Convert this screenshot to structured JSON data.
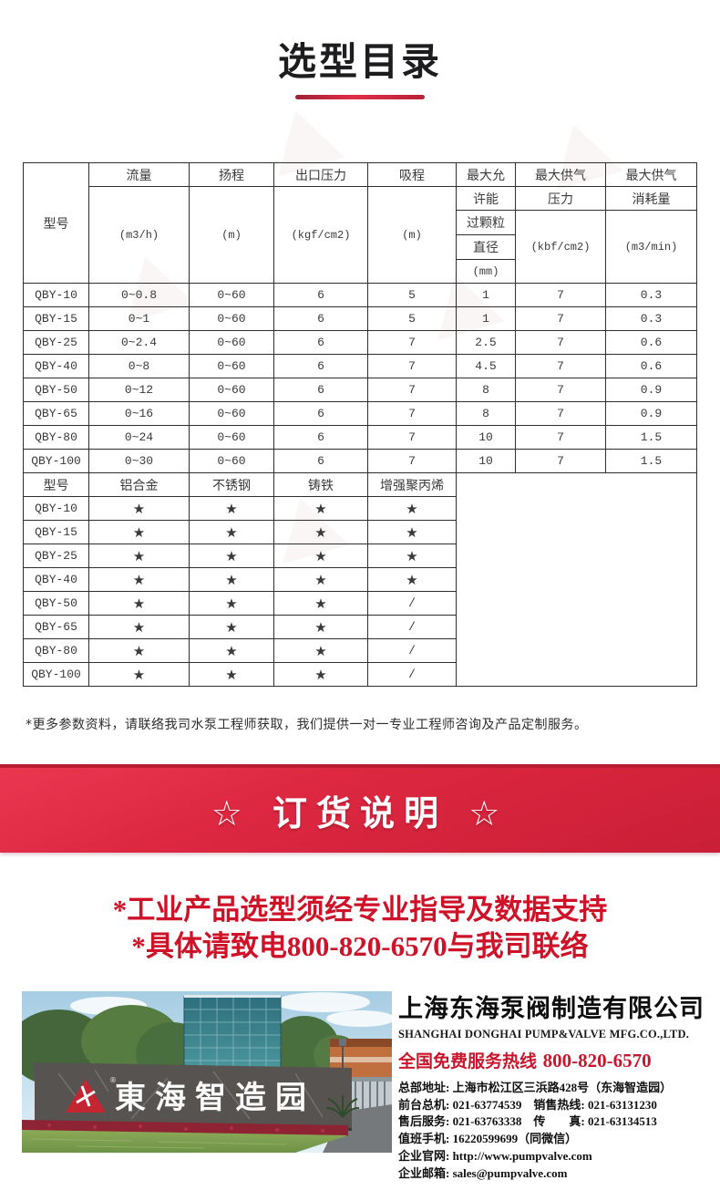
{
  "page": {
    "title": "选型目录"
  },
  "spec_table": {
    "header": {
      "model": "型号",
      "flow": "流量",
      "flow_unit": "(m3/h)",
      "head": "扬程",
      "head_unit": "(m)",
      "outlet": "出口压力",
      "outlet_unit": "(kgf/cm2)",
      "suction": "吸程",
      "suction_unit": "(m)",
      "particle_1": "最大允",
      "particle_2": "许能",
      "particle_3": "过颗粒",
      "particle_4": "直径",
      "particle_unit": "(mm)",
      "air_pressure_1": "最大供气",
      "air_pressure_2": "压力",
      "air_pressure_unit": "(kbf/cm2)",
      "air_consumption_1": "最大供气",
      "air_consumption_2": "消耗量",
      "air_consumption_unit": "(m3/min)"
    },
    "rows": [
      [
        "QBY-10",
        "0~0.8",
        "0~60",
        "6",
        "5",
        "1",
        "7",
        "0.3"
      ],
      [
        "QBY-15",
        "0~1",
        "0~60",
        "6",
        "5",
        "1",
        "7",
        "0.3"
      ],
      [
        "QBY-25",
        "0~2.4",
        "0~60",
        "6",
        "7",
        "2.5",
        "7",
        "0.6"
      ],
      [
        "QBY-40",
        "0~8",
        "0~60",
        "6",
        "7",
        "4.5",
        "7",
        "0.6"
      ],
      [
        "QBY-50",
        "0~12",
        "0~60",
        "6",
        "7",
        "8",
        "7",
        "0.9"
      ],
      [
        "QBY-65",
        "0~16",
        "0~60",
        "6",
        "7",
        "8",
        "7",
        "0.9"
      ],
      [
        "QBY-80",
        "0~24",
        "0~60",
        "6",
        "7",
        "10",
        "7",
        "1.5"
      ],
      [
        "QBY-100",
        "0~30",
        "0~60",
        "6",
        "7",
        "10",
        "7",
        "1.5"
      ]
    ]
  },
  "material_table": {
    "header": [
      "型号",
      "铝合金",
      "不锈钢",
      "铸铁",
      "增强聚丙烯"
    ],
    "rows": [
      [
        "QBY-10",
        "★",
        "★",
        "★",
        "★"
      ],
      [
        "QBY-15",
        "★",
        "★",
        "★",
        "★"
      ],
      [
        "QBY-25",
        "★",
        "★",
        "★",
        "★"
      ],
      [
        "QBY-40",
        "★",
        "★",
        "★",
        "★"
      ],
      [
        "QBY-50",
        "★",
        "★",
        "★",
        "/"
      ],
      [
        "QBY-65",
        "★",
        "★",
        "★",
        "/"
      ],
      [
        "QBY-80",
        "★",
        "★",
        "★",
        "/"
      ],
      [
        "QBY-100",
        "★",
        "★",
        "★",
        "/"
      ]
    ]
  },
  "note": "*更多参数资料，请联络我司水泵工程师获取，我们提供一对一专业工程师咨询及产品定制服务。",
  "banner": {
    "text": "☆ 订货说明 ☆"
  },
  "slogans": [
    "*工业产品选型须经专业指导及数据支持",
    "*具体请致电800-820-6570与我司联络"
  ],
  "photo": {
    "sign_text": "東海智造园"
  },
  "company": {
    "name": "上海东海泵阀制造有限公司",
    "name_en": "SHANGHAI DONGHAI PUMP&VALVE MFG.CO.,LTD.",
    "hotline_label": "全国免费服务热线",
    "hotline_number": "800-820-6570",
    "contacts": [
      "总部地址: 上海市松江区三浜路428号（东海智造园）",
      "前台总机: 021-63774539　销售热线: 021-63131230",
      "售后服务: 021-63763338　传　　真: 021-63134513",
      "值班手机: 16220599699（同微信）",
      "企业官网: http://www.pumpvalve.com",
      "企业邮箱: sales@pumpvalve.com"
    ]
  },
  "colors": {
    "accent_red": "#d2233c",
    "banner_top": "#ea3750",
    "banner_bottom": "#c91f36",
    "slogan_red": "#ce1228",
    "table_border": "#2e2e2e",
    "title_black": "#1d1d1f"
  }
}
